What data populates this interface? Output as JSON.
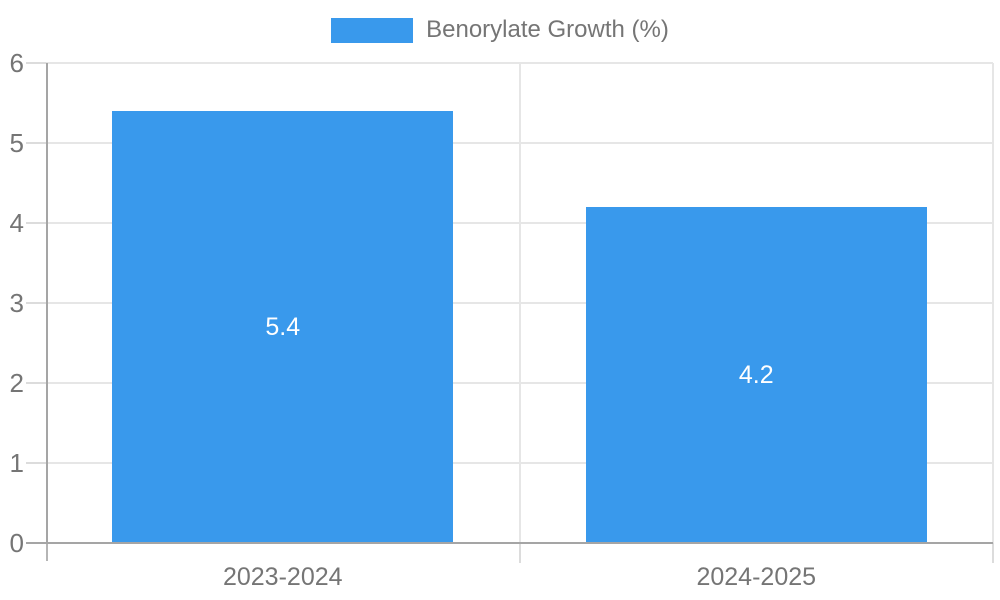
{
  "legend": {
    "position": "top"
  },
  "chart_data": {
    "type": "bar",
    "title": "",
    "xlabel": "",
    "ylabel": "",
    "categories": [
      "2023-2024",
      "2024-2025"
    ],
    "series": [
      {
        "name": "Benorylate Growth (%)",
        "values": [
          5.4,
          4.2
        ],
        "color": "#3999EC"
      }
    ],
    "value_labels": [
      "5.4",
      "4.2"
    ],
    "ylim": [
      0,
      6
    ],
    "yticks": [
      0,
      1,
      2,
      3,
      4,
      5,
      6
    ],
    "grid": true,
    "legend_position": "top"
  },
  "colors": {
    "bar": "#3999EC",
    "grid_line": "#e6e6e6",
    "tick_mark": "#dcdcdc",
    "edge_tick_mark": "#b5b5b5",
    "axis_line": "#a5a5a5",
    "tick_label": "#757575",
    "data_label": "#ffffff",
    "background": "#ffffff"
  }
}
